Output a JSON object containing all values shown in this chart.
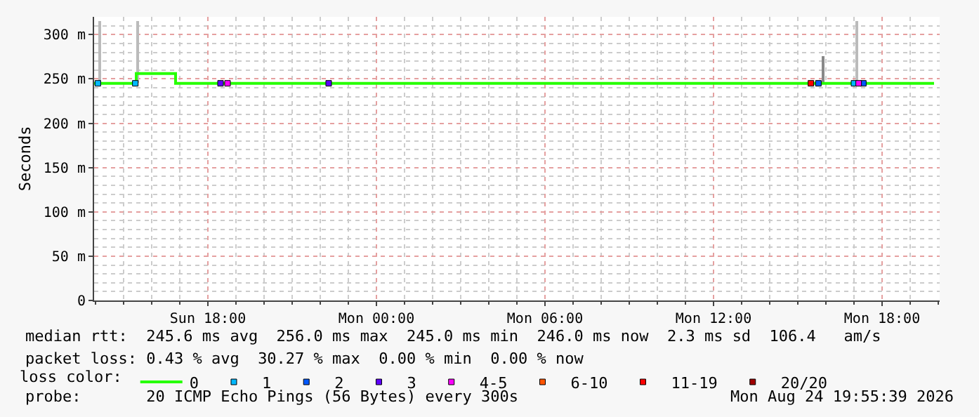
{
  "chart_data": {
    "type": "step",
    "ylabel": "Seconds",
    "xlim": [
      "2026-08-23T13:57",
      "2026-08-24T20:03"
    ],
    "ylim": [
      0,
      320
    ],
    "xticks": [
      {
        "value": "2026-08-23T18:00",
        "label": "Sun 18:00"
      },
      {
        "value": "2026-08-24T00:00",
        "label": "Mon 00:00"
      },
      {
        "value": "2026-08-24T06:00",
        "label": "Mon 06:00"
      },
      {
        "value": "2026-08-24T12:00",
        "label": "Mon 12:00"
      },
      {
        "value": "2026-08-24T18:00",
        "label": "Mon 18:00"
      }
    ],
    "yticks": [
      0,
      {
        "value": 50,
        "label": "50 m"
      },
      {
        "value": 100,
        "label": "100 m"
      },
      {
        "value": 150,
        "label": "150 m"
      },
      {
        "value": 200,
        "label": "200 m"
      },
      {
        "value": 250,
        "label": "250 m"
      },
      {
        "value": 300,
        "label": "300 m"
      }
    ],
    "grid": true,
    "legend": "bottom",
    "legend_title": "loss color:",
    "series": [
      {
        "type": "bar",
        "color": "#bbbbbb",
        "colors": [
          "#bbbbbb",
          "#bbbbbb",
          "#888888",
          "#bbbbbb"
        ],
        "x": [
          "2026-08-23T14:09",
          "2026-08-23T15:30",
          "2026-08-24T15:54",
          "2026-08-24T17:06"
        ],
        "base": [
          245,
          245,
          245,
          245
        ],
        "values": [
          70,
          70,
          30,
          70
        ]
      },
      {
        "name": "0",
        "color": "#26ff00",
        "x": [
          "2026-08-23T13:57",
          "2026-08-23T15:27",
          "2026-08-23T16:51",
          "2026-08-24T19:51"
        ],
        "values": [
          245,
          256,
          245,
          245
        ]
      },
      {
        "type": "scatter",
        "marker": "square",
        "name": "1",
        "color": "#00b8ff",
        "x": [
          "2026-08-23T14:05",
          "2026-08-23T15:25",
          "2026-08-24T17:00"
        ],
        "values": [
          245,
          245,
          245
        ]
      },
      {
        "type": "scatter",
        "marker": "square",
        "name": "2",
        "color": "#0059ff",
        "x": [
          "2026-08-24T15:44",
          "2026-08-24T17:20"
        ],
        "values": [
          245,
          245
        ]
      },
      {
        "type": "scatter",
        "marker": "square",
        "name": "3",
        "color": "#5e00ff",
        "x": [
          "2026-08-23T18:27",
          "2026-08-23T22:18"
        ],
        "values": [
          245,
          245
        ]
      },
      {
        "type": "scatter",
        "marker": "square",
        "name": "4-5",
        "color": "#ff00ff",
        "x": [
          "2026-08-23T18:42",
          "2026-08-24T17:10"
        ],
        "values": [
          245,
          245
        ]
      },
      {
        "type": "scatter",
        "marker": "square",
        "name": "6-10",
        "color": "#ff5500"
      },
      {
        "type": "scatter",
        "marker": "square",
        "name": "11-19",
        "color": "#ff0000",
        "x": [
          "2026-08-24T15:28"
        ],
        "values": [
          245
        ]
      },
      {
        "type": "scatter",
        "marker": "square",
        "name": "20/20",
        "color": "#a10000"
      }
    ],
    "annotations": [
      "median rtt:  245.6 ms avg  256.0 ms max  245.0 ms min  246.0 ms now  2.3 ms sd  106.4   am/s",
      "packet loss: 0.43 % avg  30.27 % max  0.00 % min  0.00 % now",
      "probe:       20 ICMP Echo Pings (56 Bytes) every 300s",
      "Mon Aug 24 19:55:39 2026"
    ]
  }
}
